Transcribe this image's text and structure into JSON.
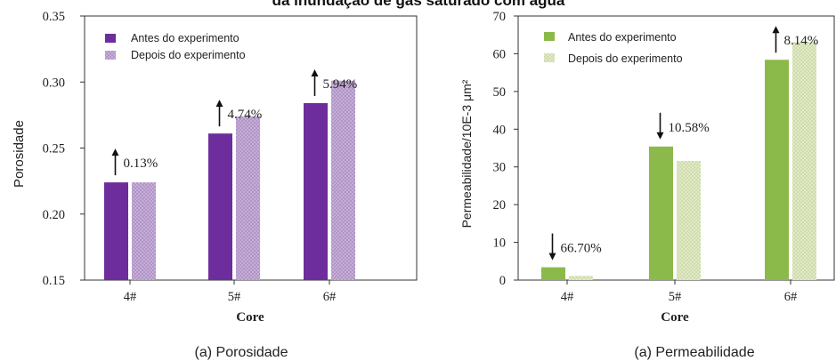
{
  "page_title": "da inundação de gás saturado com água",
  "patterns": {
    "porosity_after": "#c9b3d8",
    "permeability_after": "#e4eccd"
  },
  "chart_data": [
    {
      "type": "bar",
      "caption": "(a) Porosidade",
      "xlabel": "Core",
      "ylabel": "Porosidade",
      "ylim": [
        0.15,
        0.35
      ],
      "yticks": [
        "0.15",
        "0.20",
        "0.25",
        "0.30",
        "0.35"
      ],
      "yticks_values": [
        0.15,
        0.2,
        0.25,
        0.3,
        0.35
      ],
      "categories": [
        "4#",
        "5#",
        "6#"
      ],
      "legend_position": "top-left",
      "grid": false,
      "series": [
        {
          "name": "Antes do experimento",
          "color": "#6d2d9c",
          "values": [
            0.224,
            0.261,
            0.284
          ]
        },
        {
          "name": "Depois do experimento",
          "color": "#c9b3d8",
          "pattern": "porosity_after",
          "values": [
            0.224,
            0.274,
            0.301
          ]
        }
      ],
      "annotations": [
        {
          "text": "0.13%",
          "category": 0,
          "direction": "up"
        },
        {
          "text": "4.74%",
          "category": 1,
          "direction": "up"
        },
        {
          "text": "5.94%",
          "category": 2,
          "direction": "up"
        }
      ]
    },
    {
      "type": "bar",
      "caption": "(a) Permeabilidade",
      "xlabel": "Core",
      "ylabel": "Permeabilidade/10E-3 μm²",
      "ylim": [
        0,
        70
      ],
      "yticks": [
        "0",
        "10",
        "20",
        "30",
        "40",
        "50",
        "60",
        "70"
      ],
      "yticks_values": [
        0,
        10,
        20,
        30,
        40,
        50,
        60,
        70
      ],
      "categories": [
        "4#",
        "5#",
        "6#"
      ],
      "legend_position": "top-left",
      "grid": false,
      "series": [
        {
          "name": "Antes do experimento",
          "color": "#8cba4a",
          "values": [
            3.4,
            35.4,
            58.4
          ]
        },
        {
          "name": "Depois do experimento",
          "color": "#e4eccd",
          "pattern": "permeability_after",
          "values": [
            1.1,
            31.6,
            63.1
          ]
        }
      ],
      "annotations": [
        {
          "text": "66.70%",
          "category": 0,
          "direction": "down"
        },
        {
          "text": "10.58%",
          "category": 1,
          "direction": "down"
        },
        {
          "text": "8.14%",
          "category": 2,
          "direction": "up"
        }
      ]
    }
  ]
}
